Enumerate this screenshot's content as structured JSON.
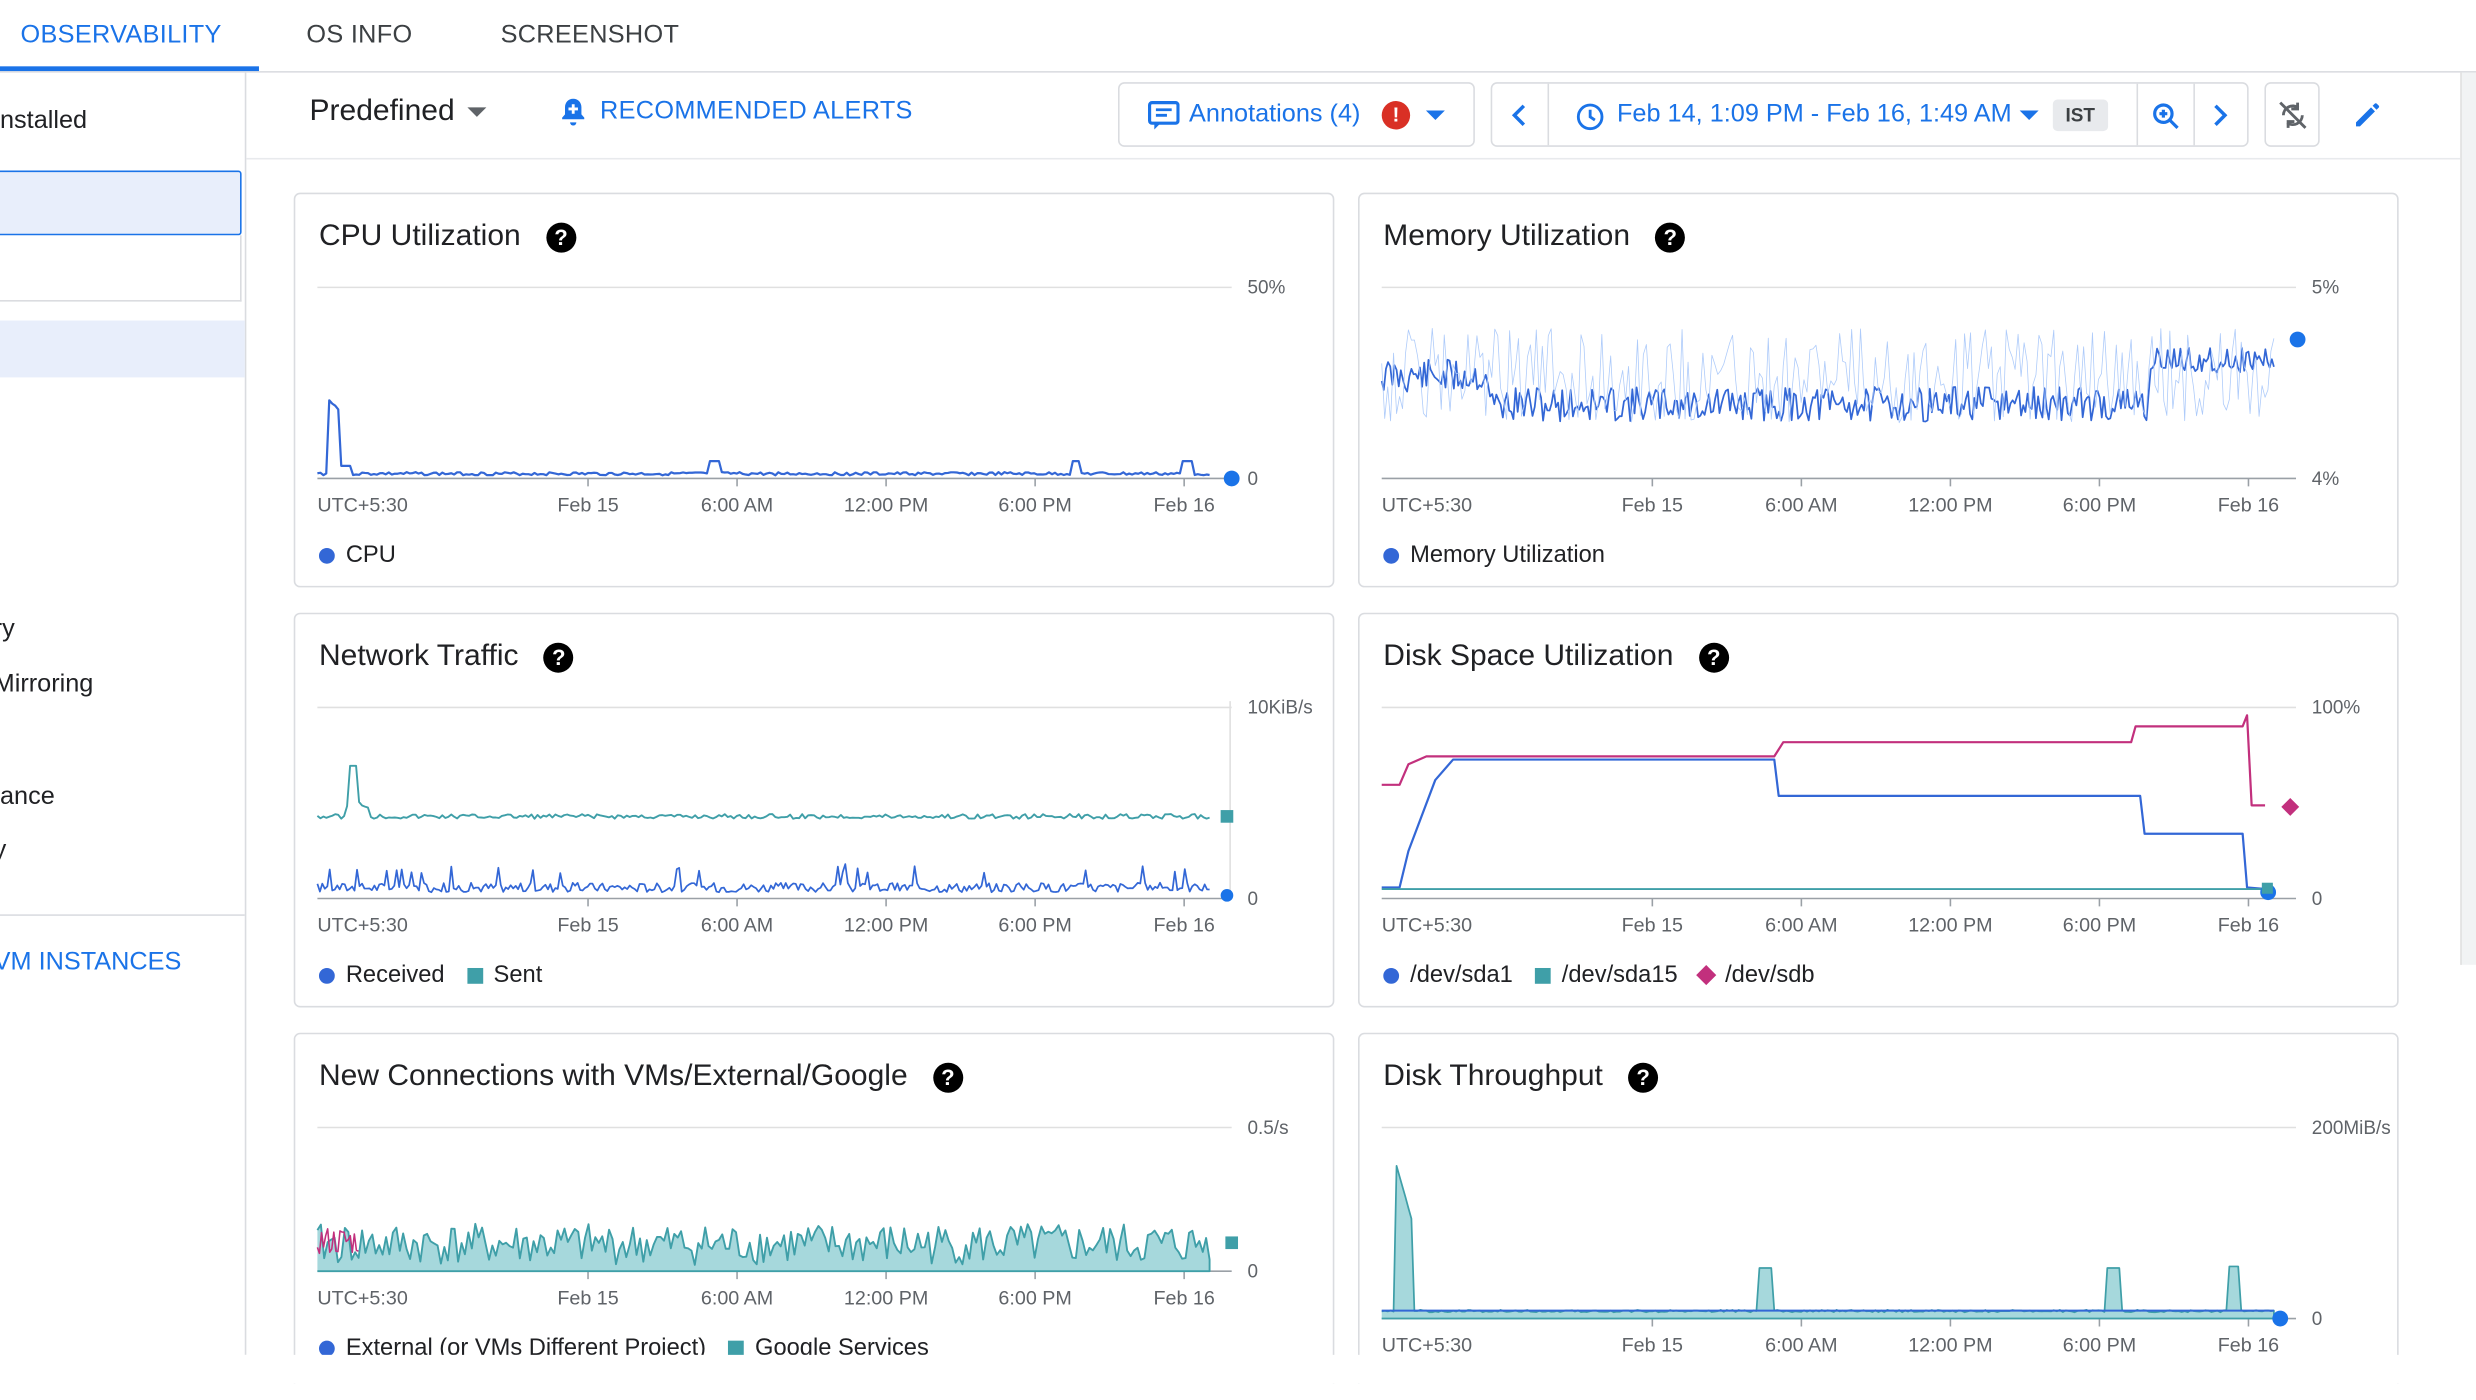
{
  "tabs": [
    {
      "label": "OBSERVABILITY",
      "active": true
    },
    {
      "label": "OS INFO",
      "active": false
    },
    {
      "label": "SCREENSHOT",
      "active": false
    }
  ],
  "sidebar": {
    "items": [
      "nstalled",
      "ry",
      "Mirroring",
      "ance",
      "y"
    ],
    "link": "VM INSTANCES"
  },
  "toolbar": {
    "predefined_label": "Predefined",
    "recommended_alerts": "RECOMMENDED ALERTS",
    "annotations_label": "Annotations (4)",
    "alert_badge": "!",
    "time_range": "Feb 14, 1:09 PM - Feb 16, 1:49 AM",
    "timezone": "IST"
  },
  "x_ticks": [
    "UTC+5:30",
    "Feb 15",
    "6:00 AM",
    "12:00 PM",
    "6:00 PM",
    "Feb 16"
  ],
  "colors": {
    "blue": "#1a73e8",
    "series_blue": "#3367d6",
    "teal": "#3f9fa8",
    "magenta": "#c2307d",
    "grid": "#e0e0e0"
  },
  "chart_data": [
    {
      "id": "cpu",
      "type": "line",
      "title": "CPU Utilization",
      "y_top": "50%",
      "y_bottom": "0",
      "ylim": [
        0,
        50
      ],
      "series": [
        {
          "name": "CPU",
          "color": "#3367d6"
        }
      ]
    },
    {
      "id": "mem",
      "type": "line",
      "title": "Memory Utilization",
      "y_top": "5%",
      "y_bottom": "4%",
      "ylim": [
        4,
        5
      ],
      "series": [
        {
          "name": "Memory Utilization",
          "color": "#3367d6"
        }
      ]
    },
    {
      "id": "net",
      "type": "line",
      "title": "Network Traffic",
      "y_top": "10KiB/s",
      "y_bottom": "0",
      "series": [
        {
          "name": "Received",
          "color": "#3367d6"
        },
        {
          "name": "Sent",
          "color": "#3f9fa8"
        }
      ]
    },
    {
      "id": "disk",
      "type": "line",
      "title": "Disk Space Utilization",
      "y_top": "100%",
      "y_bottom": "0",
      "ylim": [
        0,
        100
      ],
      "series": [
        {
          "name": "/dev/sda1",
          "color": "#3367d6"
        },
        {
          "name": "/dev/sda15",
          "color": "#3f9fa8"
        },
        {
          "name": "/dev/sdb",
          "color": "#c2307d"
        }
      ]
    },
    {
      "id": "conn",
      "type": "area",
      "title": "New Connections with VMs/External/Google",
      "y_top": "0.5/s",
      "y_bottom": "0",
      "series": [
        {
          "name": "External (or VMs Different Project)",
          "color": "#3367d6"
        },
        {
          "name": "Google Services",
          "color": "#3f9fa8"
        }
      ]
    },
    {
      "id": "thru",
      "type": "area",
      "title": "Disk Throughput",
      "y_top": "200MiB/s",
      "y_bottom": "0",
      "series": []
    }
  ]
}
